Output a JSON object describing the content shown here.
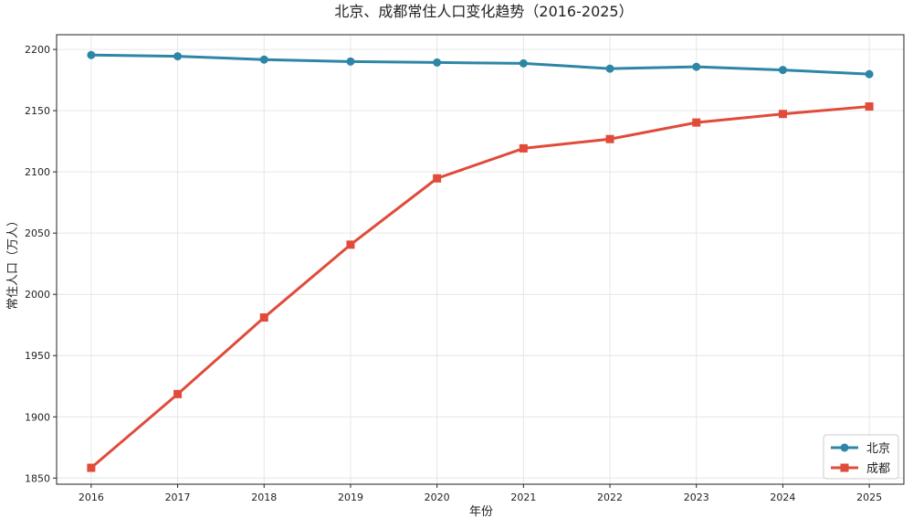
{
  "chart_data": {
    "type": "line",
    "title": "北京、成都常住人口变化趋势（2016-2025）",
    "xlabel": "年份",
    "ylabel": "常住人口（万人）",
    "x": [
      2016,
      2017,
      2018,
      2019,
      2020,
      2021,
      2022,
      2023,
      2024,
      2025
    ],
    "xlim": [
      2015.6,
      2025.4
    ],
    "ylim": [
      1845,
      2212
    ],
    "yticks": [
      1850,
      1900,
      1950,
      2000,
      2050,
      2100,
      2150,
      2200
    ],
    "grid": true,
    "legend_position": "bottom-right",
    "series": [
      {
        "name": "北京",
        "color": "#2e86a6",
        "marker": "circle",
        "values": [
          2195.4,
          2194.4,
          2191.7,
          2190.1,
          2189.3,
          2188.6,
          2184.3,
          2185.8,
          2183.2,
          2179.8
        ]
      },
      {
        "name": "成都",
        "color": "#e04b3a",
        "marker": "square",
        "values": [
          1858.4,
          1918.6,
          1981.1,
          2040.6,
          2094.7,
          2119.2,
          2126.8,
          2140.3,
          2147.3,
          2153.4
        ]
      }
    ]
  }
}
